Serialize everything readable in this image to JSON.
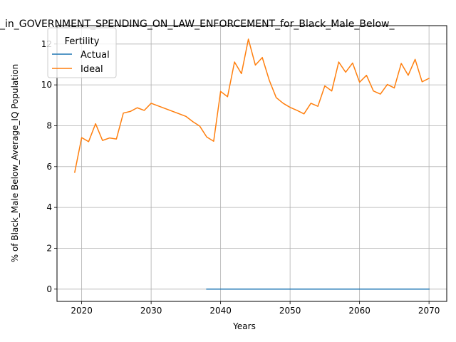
{
  "chart_data": {
    "type": "line",
    "title": "_in_GOVERNMENT_SPENDING_ON_LAW_ENFORCEMENT_for_Black_Male_Below_",
    "xlabel": "Years",
    "ylabel": "% of Black_Male Below_Average_IQ Population",
    "xlim": [
      2016.45,
      2072.55
    ],
    "ylim": [
      -0.6,
      12.9
    ],
    "xticks": [
      2020,
      2030,
      2040,
      2050,
      2060,
      2070
    ],
    "yticks": [
      0,
      2,
      4,
      6,
      8,
      10,
      12
    ],
    "grid": true,
    "legend": {
      "title": "Fertility",
      "placement": "top-left"
    },
    "series": [
      {
        "name": "Actual",
        "color": "#1f77b4",
        "x": [
          2038,
          2039,
          2040,
          2045,
          2050,
          2055,
          2060,
          2065,
          2070
        ],
        "y": [
          0,
          0,
          0,
          0,
          0,
          0,
          0,
          0,
          0
        ]
      },
      {
        "name": "Ideal",
        "color": "#ff7f0e",
        "x": [
          2019,
          2020,
          2021,
          2022,
          2023,
          2024,
          2025,
          2026,
          2027,
          2028,
          2029,
          2030,
          2035,
          2036,
          2037,
          2038,
          2039,
          2040,
          2041,
          2042,
          2043,
          2044,
          2045,
          2046,
          2047,
          2048,
          2049,
          2050,
          2051,
          2052,
          2053,
          2054,
          2055,
          2056,
          2057,
          2058,
          2059,
          2060,
          2061,
          2062,
          2063,
          2064,
          2065,
          2066,
          2067,
          2068,
          2069,
          2070
        ],
        "y": [
          5.72,
          7.42,
          7.22,
          8.1,
          7.28,
          7.4,
          7.35,
          8.62,
          8.7,
          8.88,
          8.75,
          9.1,
          8.46,
          8.2,
          7.98,
          7.45,
          7.24,
          9.68,
          9.42,
          11.12,
          10.55,
          12.24,
          10.97,
          11.34,
          10.23,
          9.38,
          9.1,
          8.9,
          8.75,
          8.58,
          9.1,
          8.95,
          9.95,
          9.7,
          11.12,
          10.62,
          11.07,
          10.13,
          10.47,
          9.7,
          9.55,
          10.02,
          9.85,
          11.05,
          10.47,
          11.25,
          10.15,
          10.32
        ]
      }
    ]
  }
}
